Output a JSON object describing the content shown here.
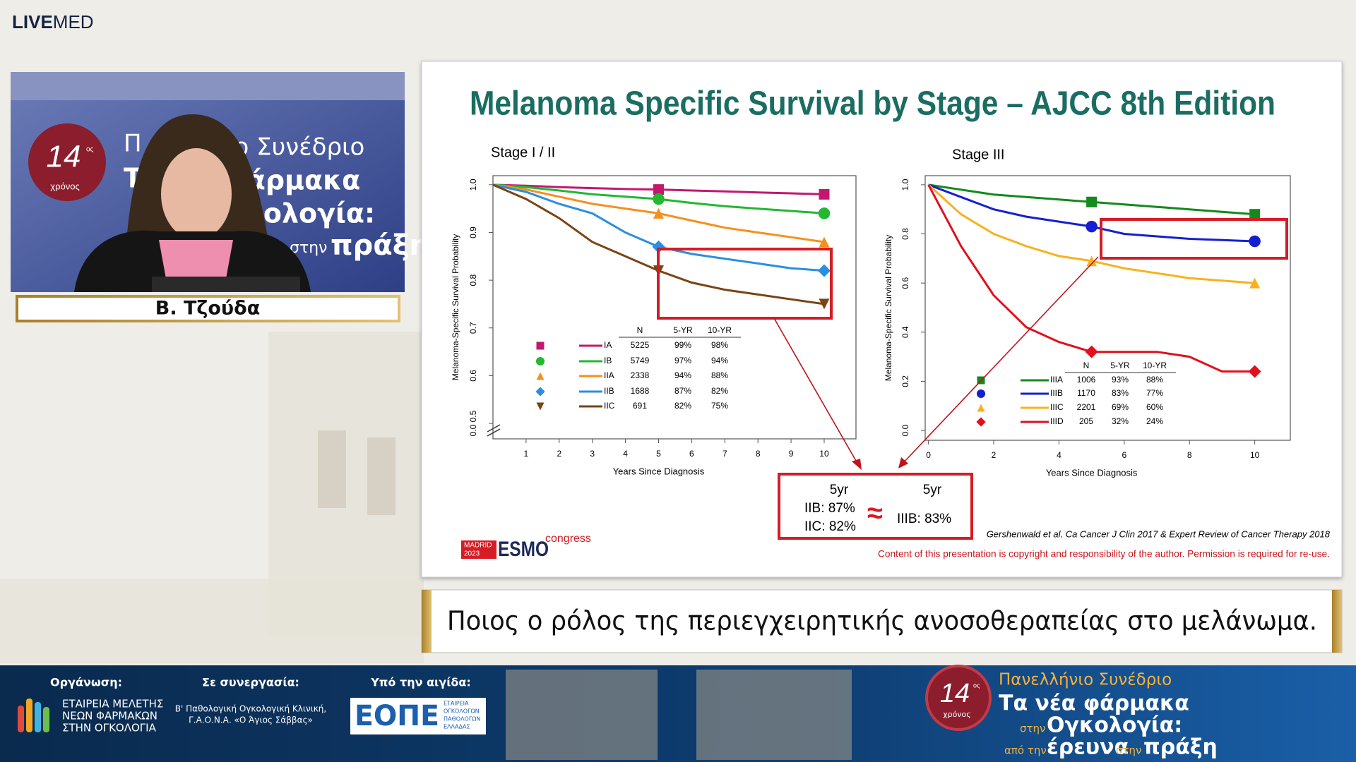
{
  "header": {
    "logo_bold": "LIVE",
    "logo_light": "MED"
  },
  "video": {
    "speaker": "Β. Τζούδα",
    "banner": [
      "Π",
      "ιο Συνέδριο",
      "Τ",
      "φάρμακα",
      "γκολογία:",
      "στην",
      "πράξη"
    ],
    "seal_number": "14",
    "seal_suffix": "ος",
    "seal_word": "χρόνος"
  },
  "slide": {
    "title": "Melanoma Specific Survival by Stage – AJCC 8th Edition",
    "comparison": {
      "left_head": "5yr",
      "left_lines": [
        "IIB: 87%",
        "IIC: 82%"
      ],
      "symbol": "≈",
      "right_head": "5yr",
      "right_lines": [
        "IIIB: 83%"
      ]
    },
    "citation": "Gershenwald et al. Ca Cancer J Clin 2017 & Expert Review of Cancer Therapy 2018",
    "copyright": "Content of this presentation is copyright and responsibility of the author. Permission is required for re-use.",
    "logo": {
      "city": "MADRID",
      "year": "2023",
      "name": "ESMO",
      "suffix": "congress"
    }
  },
  "chart_data": [
    {
      "type": "line",
      "title": "Stage I / II",
      "x_label": "Years Since Diagnosis",
      "y_label": "Melanoma-Specific Survival Probability",
      "x": [
        0,
        1,
        2,
        3,
        4,
        5,
        6,
        7,
        8,
        9,
        10
      ],
      "xlim": [
        0,
        10.96
      ],
      "ylim": [
        0.4675,
        1.019
      ],
      "xticks": [
        1,
        2,
        3,
        4,
        5,
        6,
        7,
        8,
        9,
        10
      ],
      "yticks": [
        {
          "value": 0.5,
          "label": "0.0 0.5"
        },
        0.6,
        0.7,
        0.8,
        0.9,
        {
          "value": 1,
          "label": "1.0"
        }
      ],
      "series": [
        {
          "name": "IA",
          "color": "#c2186f",
          "marker": "square",
          "values": [
            1,
            0.998,
            0.995,
            0.993,
            0.991,
            0.99,
            0.988,
            0.986,
            0.984,
            0.982,
            0.98
          ]
        },
        {
          "name": "IB",
          "color": "#22b830",
          "marker": "circle",
          "values": [
            1,
            0.995,
            0.988,
            0.98,
            0.975,
            0.97,
            0.962,
            0.955,
            0.95,
            0.945,
            0.94
          ]
        },
        {
          "name": "IIA",
          "color": "#f5901e",
          "marker": "triangle",
          "values": [
            1,
            0.99,
            0.975,
            0.96,
            0.95,
            0.94,
            0.925,
            0.91,
            0.9,
            0.89,
            0.88
          ]
        },
        {
          "name": "IIB",
          "color": "#2a8fe0",
          "marker": "diamond",
          "values": [
            1,
            0.985,
            0.96,
            0.94,
            0.9,
            0.87,
            0.855,
            0.845,
            0.835,
            0.825,
            0.82
          ]
        },
        {
          "name": "IIC",
          "color": "#7a4414",
          "marker": "triangle-down",
          "values": [
            1,
            0.97,
            0.93,
            0.88,
            0.85,
            0.82,
            0.795,
            0.78,
            0.77,
            0.76,
            0.75
          ]
        }
      ],
      "table": {
        "columns": [
          "N",
          "5-YR",
          "10-YR"
        ],
        "rows": [
          [
            "5225",
            "99%",
            "98%"
          ],
          [
            "5749",
            "97%",
            "94%"
          ],
          [
            "2338",
            "94%",
            "88%"
          ],
          [
            "1688",
            "87%",
            "82%"
          ],
          [
            "691",
            "82%",
            "75%"
          ]
        ]
      }
    },
    {
      "type": "line",
      "title": "Stage III",
      "x_label": "Years Since Diagnosis",
      "y_label": "Melanoma-Specific Survival Probability",
      "x": [
        0,
        1,
        2,
        3,
        4,
        5,
        6,
        7,
        8,
        9,
        10
      ],
      "xlim": [
        -0.1,
        11.09
      ],
      "ylim": [
        -0.04,
        1.037
      ],
      "xticks": [
        0,
        2,
        4,
        6,
        8,
        10
      ],
      "yticks": [
        {
          "value": 0,
          "label": "0.0"
        },
        0.2,
        0.4,
        0.6,
        0.8,
        {
          "value": 1,
          "label": "1.0"
        }
      ],
      "series": [
        {
          "name": "IIIA",
          "color": "#138a1c",
          "marker": "square",
          "values": [
            1,
            0.98,
            0.96,
            0.95,
            0.94,
            0.93,
            0.92,
            0.91,
            0.9,
            0.89,
            0.88
          ]
        },
        {
          "name": "IIIB",
          "color": "#1420d0",
          "marker": "circle",
          "values": [
            1,
            0.95,
            0.9,
            0.87,
            0.85,
            0.83,
            0.8,
            0.79,
            0.78,
            0.775,
            0.77
          ]
        },
        {
          "name": "IIIC",
          "color": "#f7b21c",
          "marker": "triangle",
          "values": [
            1,
            0.88,
            0.8,
            0.75,
            0.71,
            0.69,
            0.66,
            0.64,
            0.62,
            0.61,
            0.6
          ]
        },
        {
          "name": "IIID",
          "color": "#e0101c",
          "marker": "diamond",
          "values": [
            1,
            0.75,
            0.55,
            0.42,
            0.36,
            0.32,
            0.32,
            0.32,
            0.3,
            0.24,
            0.24
          ]
        }
      ],
      "table": {
        "columns": [
          "N",
          "5-YR",
          "10-YR"
        ],
        "rows": [
          [
            "1006",
            "93%",
            "88%"
          ],
          [
            "1170",
            "83%",
            "77%"
          ],
          [
            "2201",
            "69%",
            "60%"
          ],
          [
            "205",
            "32%",
            "24%"
          ]
        ]
      }
    }
  ],
  "caption": "Ποιος ο ρόλος της περιεγχειρητικής ανοσοθεραπείας στο μελάνωμα.",
  "footer": {
    "organizer_label": "Οργάνωση:",
    "organizer_lines": [
      "ΕΤΑΙΡΕΙΑ ΜΕΛΕΤΗΣ",
      "ΝΕΩΝ ΦΑΡΜΑΚΩΝ",
      "ΣΤΗΝ ΟΓΚΟΛΟΓΙΑ"
    ],
    "partner_label": "Σε συνεργασία:",
    "partner_lines": [
      "Β' Παθολογική Ογκολογική Κλινική,",
      "Γ.Α.Ο.Ν.Α. «Ο Άγιος Σάββας»"
    ],
    "auspices_label": "Υπό την αιγίδα:",
    "auspices_logo": "ΕΟΠΕ",
    "auspices_lines": [
      "ΕΤΑΙΡΕΙΑ",
      "ΟΓΚΟΛΟΓΩΝ",
      "ΠΑΘΟΛΟΓΩΝ",
      "ΕΛΛΑΔΑΣ"
    ],
    "event": {
      "seal_number": "14",
      "seal_suffix": "ος",
      "seal_word": "χρόνος",
      "line1": "Πανελλήνιο Συνέδριο",
      "line2": "Τα νέα φάρμακα",
      "line3_small": "στην",
      "line3": "Ογκολογία:",
      "line4_small": "από την",
      "line4": "έρευνα",
      "line4_small2": "στην",
      "line4_end": "πράξη"
    }
  }
}
